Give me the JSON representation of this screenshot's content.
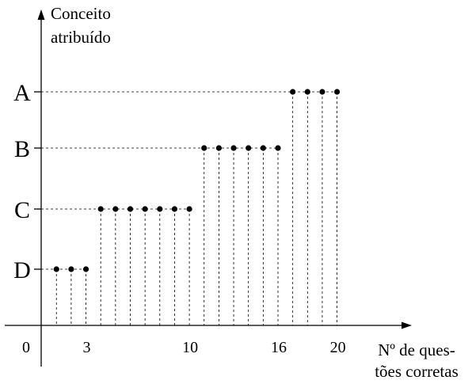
{
  "chart_data": {
    "type": "scatter",
    "title": "",
    "ylabel_lines": [
      "Conceito",
      "atribuído"
    ],
    "xlabel_lines": [
      "Nº de ques-",
      "tões corretas"
    ],
    "y_categories": [
      "D",
      "C",
      "B",
      "A"
    ],
    "origin_label": "0",
    "x_tick_labels": [
      {
        "value": 3,
        "label": "3"
      },
      {
        "value": 10,
        "label": "10"
      },
      {
        "value": 16,
        "label": "16"
      },
      {
        "value": 20,
        "label": "20"
      }
    ],
    "xlim": [
      0,
      20
    ],
    "grid": false,
    "style": "dashed drop lines from each point to the x-axis and dashed guide lines to the y-axis",
    "series": [
      {
        "values": [
          {
            "x": 1,
            "y": "D"
          },
          {
            "x": 2,
            "y": "D"
          },
          {
            "x": 3,
            "y": "D"
          },
          {
            "x": 4,
            "y": "C"
          },
          {
            "x": 5,
            "y": "C"
          },
          {
            "x": 6,
            "y": "C"
          },
          {
            "x": 7,
            "y": "C"
          },
          {
            "x": 8,
            "y": "C"
          },
          {
            "x": 9,
            "y": "C"
          },
          {
            "x": 10,
            "y": "C"
          },
          {
            "x": 11,
            "y": "B"
          },
          {
            "x": 12,
            "y": "B"
          },
          {
            "x": 13,
            "y": "B"
          },
          {
            "x": 14,
            "y": "B"
          },
          {
            "x": 15,
            "y": "B"
          },
          {
            "x": 16,
            "y": "B"
          },
          {
            "x": 17,
            "y": "A"
          },
          {
            "x": 18,
            "y": "A"
          },
          {
            "x": 19,
            "y": "A"
          },
          {
            "x": 20,
            "y": "A"
          }
        ]
      }
    ]
  }
}
